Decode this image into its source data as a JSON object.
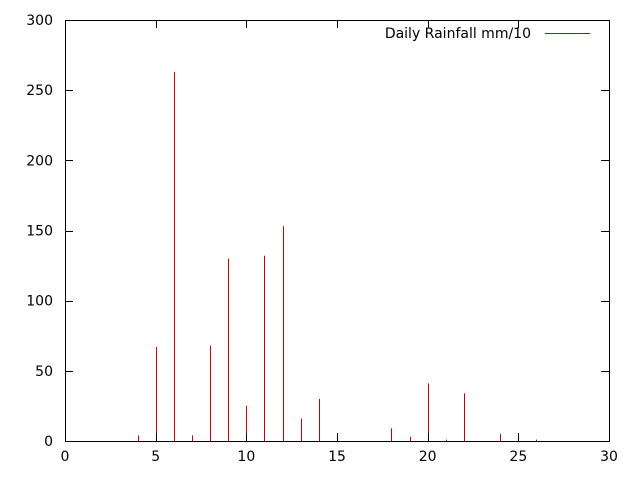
{
  "chart_data": {
    "type": "bar",
    "style": "impulses",
    "xlim": [
      0,
      30
    ],
    "ylim": [
      0,
      300
    ],
    "xticks": [
      0,
      5,
      10,
      15,
      20,
      25,
      30
    ],
    "yticks": [
      0,
      50,
      100,
      150,
      200,
      250,
      300
    ],
    "grid": false,
    "legend_position": "top-right",
    "series": [
      {
        "name": "Daily Rainfall mm/10",
        "color": "#cc0000",
        "x": [
          4,
          5,
          6,
          7,
          8,
          9,
          10,
          11,
          12,
          13,
          14,
          15,
          18,
          19,
          20,
          21,
          22,
          24,
          25,
          26
        ],
        "y": [
          4,
          67,
          263,
          4,
          68,
          130,
          25,
          132,
          153,
          16,
          30,
          5,
          9,
          3,
          41,
          1,
          34,
          5,
          2,
          1
        ]
      }
    ]
  }
}
